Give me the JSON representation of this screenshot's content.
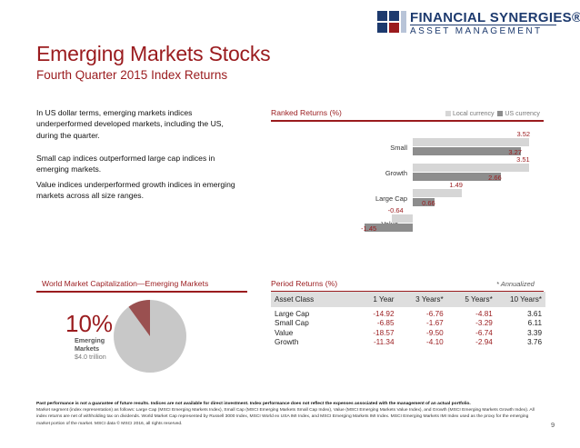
{
  "header": {
    "title": "Emerging Markets Stocks",
    "subtitle": "Fourth Quarter 2015 Index Returns",
    "logo_name": "FINANCIAL SYNERGIES®",
    "logo_sub": "ASSET MANAGEMENT"
  },
  "intro": {
    "p1": "In US dollar terms, emerging markets indices underperformed developed markets, including the US, during the quarter.",
    "p2": "Small cap indices outperformed large cap indices in emerging markets.",
    "p3": "Value indices underperformed growth indices in emerging markets across all size ranges."
  },
  "ranked": {
    "title": "Ranked Returns (%)",
    "legend_local": "Local currency",
    "legend_us": "US currency",
    "colors": {
      "local": "#d6d6d6",
      "us": "#8d8d8d",
      "accent": "#9a1b1e"
    }
  },
  "chart_data": {
    "type": "bar",
    "orientation": "horizontal",
    "title": "Ranked Returns (%)",
    "categories": [
      "Small",
      "Growth",
      "Large Cap",
      "Value"
    ],
    "series": [
      {
        "name": "Local currency",
        "values": [
          3.52,
          3.51,
          1.49,
          -0.64
        ]
      },
      {
        "name": "US currency",
        "values": [
          3.27,
          2.66,
          0.66,
          -1.45
        ]
      }
    ],
    "legend": "top-right"
  },
  "world": {
    "title": "World Market Capitalization—Emerging Markets",
    "pct_label": "10%",
    "share": 0.1,
    "label_line1": "Emerging",
    "label_line2": "Markets",
    "value": "$4.0 trillion",
    "colors": {
      "slice": "#9a5050",
      "rest": "#c8c8c8"
    }
  },
  "period": {
    "title": "Period Returns (%)",
    "note": "* Annualized",
    "headers": [
      "Asset Class",
      "1 Year",
      "3 Years*",
      "5 Years*",
      "10 Years*"
    ],
    "rows": [
      [
        "Large Cap",
        "-14.92",
        "-6.76",
        "-4.81",
        "3.61"
      ],
      [
        "Small Cap",
        "-6.85",
        "-1.67",
        "-3.29",
        "6.11"
      ],
      [
        "Value",
        "-18.57",
        "-9.50",
        "-6.74",
        "3.39"
      ],
      [
        "Growth",
        "-11.34",
        "-4.10",
        "-2.94",
        "3.76"
      ]
    ]
  },
  "footer": {
    "bold": "Past performance is not a guarantee of future results. Indices are not available for direct investment. Index performance does not reflect the expenses associated with the management of an actual portfolio.",
    "text": "Market segment (index representation) as follows: Large Cap (MSCI Emerging Markets Index), Small Cap (MSCI Emerging Markets Small Cap Index), Value (MSCI Emerging Markets Value Index), and Growth (MSCI Emerging Markets Growth Index). All index returns are net of withholding tax on dividends. World Market Cap represented by Russell 3000 Index, MSCI World ex USA IMI Index, and MSCI Emerging Markets IMI Index. MSCI Emerging Markets IMI Index used as the proxy for the emerging market portion of the market. MSCI data © MSCI 2016, all rights reserved.",
    "page": "9"
  }
}
